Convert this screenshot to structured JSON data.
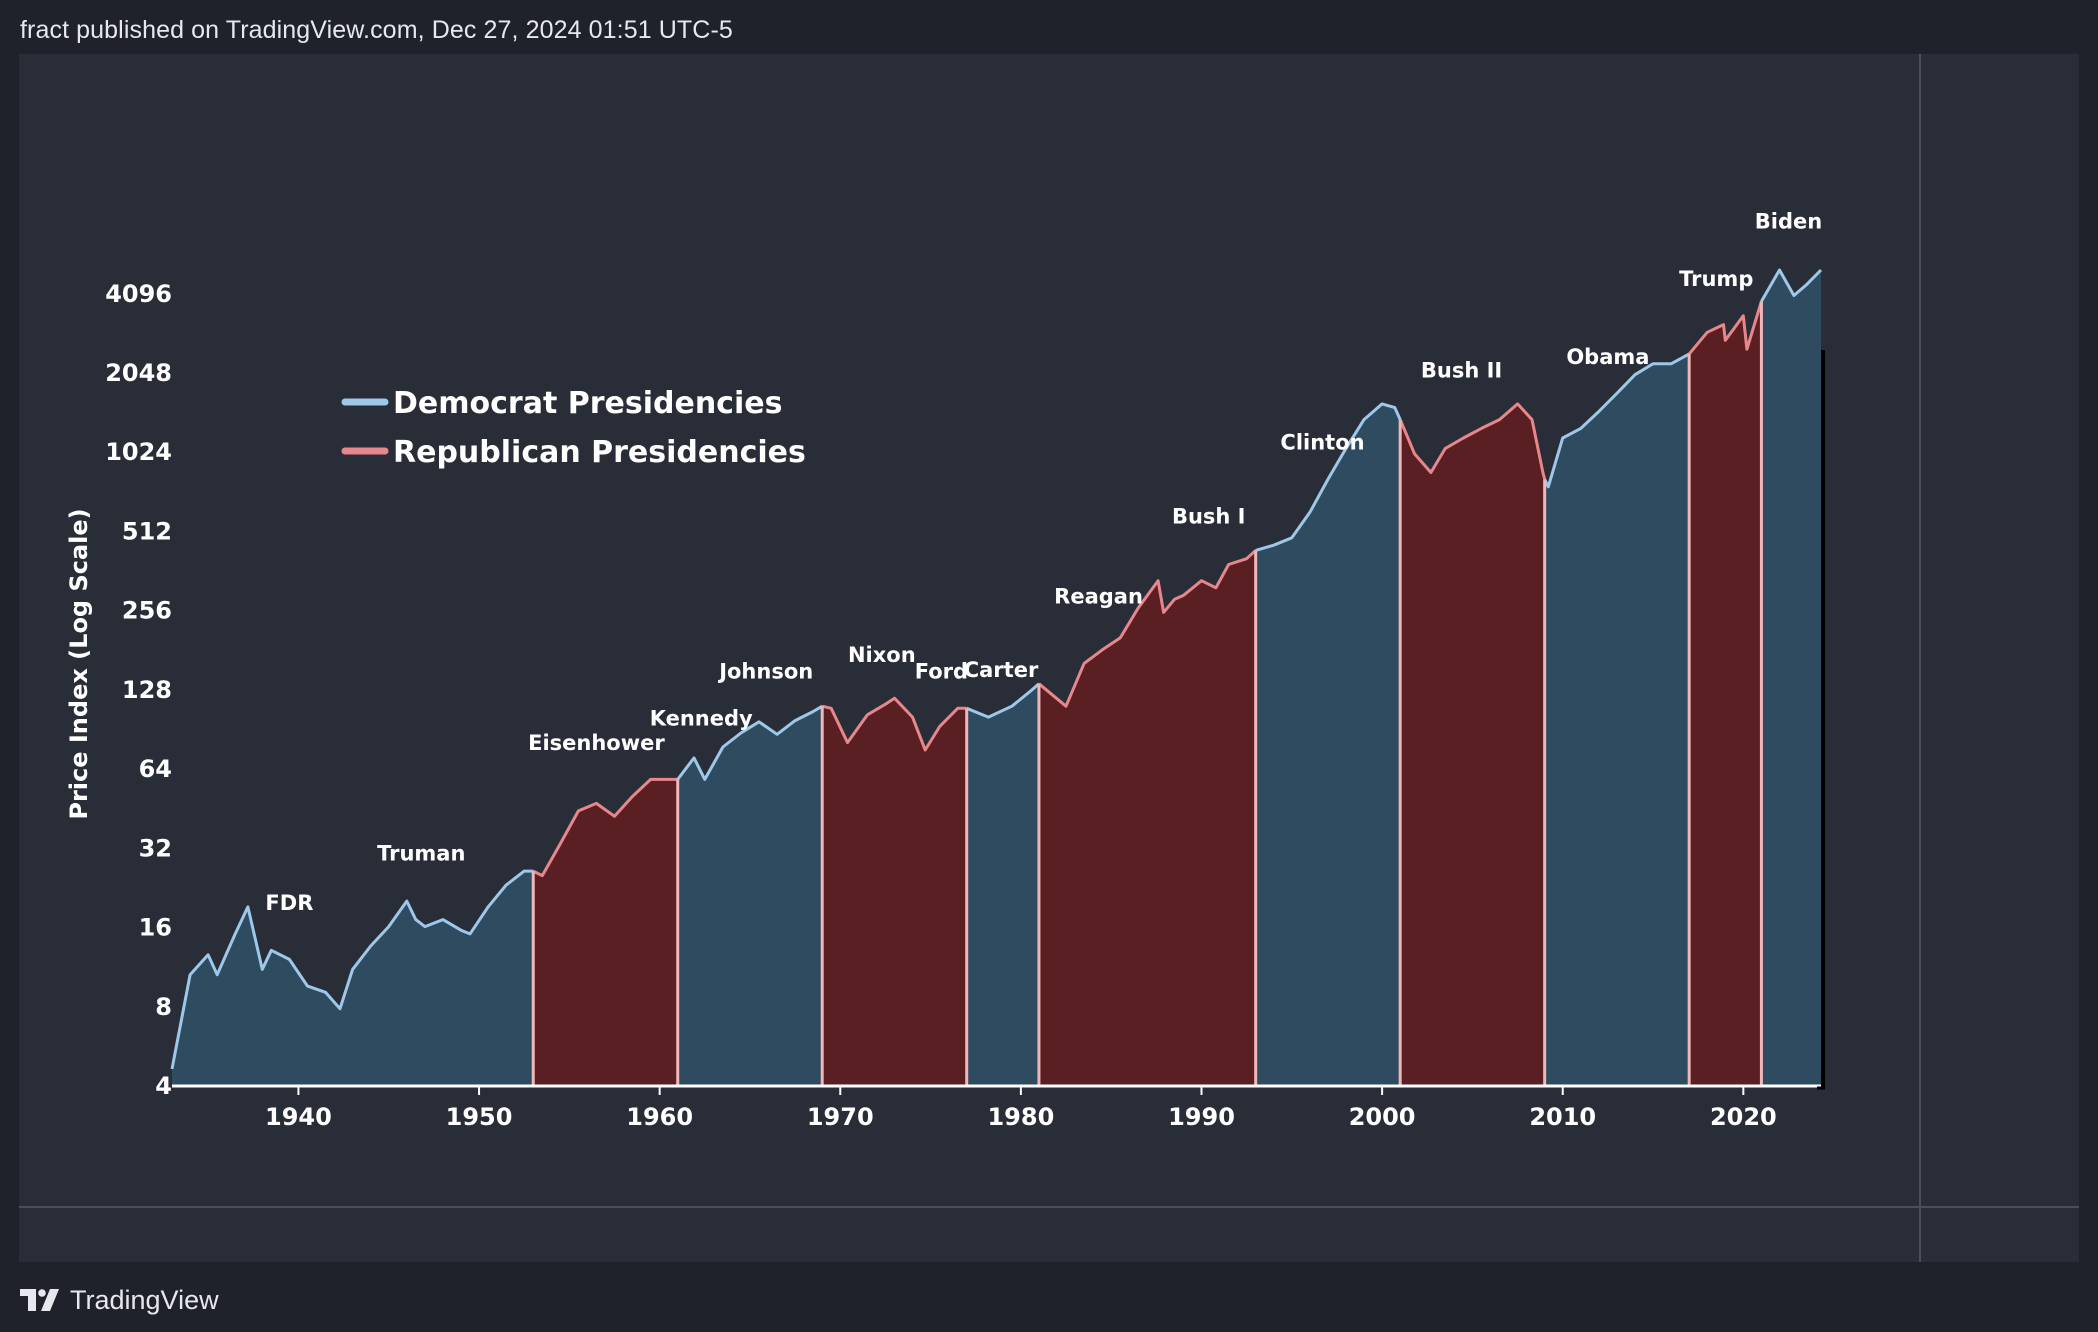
{
  "header": {
    "text": "fract published on TradingView.com, Dec 27, 2024 01:51 UTC-5"
  },
  "footer": {
    "brand": "TradingView",
    "logo_icon": "tradingview-logo-icon"
  },
  "colors": {
    "democrat_fill": "#2f4b60",
    "democrat_line": "#9ec8ea",
    "republican_fill": "#5a1f22",
    "republican_line": "#e8878b",
    "background": "#292d38"
  },
  "chart_data": {
    "type": "area",
    "ylabel": "Price Index (Log Scale)",
    "y_scale": "log2",
    "ylim": [
      4,
      5000
    ],
    "xlim": [
      1933,
      2024.3
    ],
    "y_ticks": [
      4,
      8,
      16,
      32,
      64,
      128,
      256,
      512,
      1024,
      2048,
      4096
    ],
    "x_ticks": [
      1940,
      1950,
      1960,
      1970,
      1980,
      1990,
      2000,
      2010,
      2020
    ],
    "grid": false,
    "legend_position": "top-left",
    "legend": [
      {
        "label": "Democrat Presidencies",
        "party": "D"
      },
      {
        "label": "Republican Presidencies",
        "party": "R"
      }
    ],
    "presidencies": [
      {
        "name": "FDR",
        "party": "D",
        "start": 1933,
        "end": 1945.3
      },
      {
        "name": "Truman",
        "party": "D",
        "start": 1945.3,
        "end": 1953
      },
      {
        "name": "Eisenhower",
        "party": "R",
        "start": 1953,
        "end": 1961
      },
      {
        "name": "Kennedy",
        "party": "D",
        "start": 1961,
        "end": 1963.9
      },
      {
        "name": "Johnson",
        "party": "D",
        "start": 1963.9,
        "end": 1969
      },
      {
        "name": "Nixon",
        "party": "R",
        "start": 1969,
        "end": 1974.6
      },
      {
        "name": "Ford",
        "party": "R",
        "start": 1974.6,
        "end": 1977
      },
      {
        "name": "Carter",
        "party": "D",
        "start": 1977,
        "end": 1981
      },
      {
        "name": "Reagan",
        "party": "R",
        "start": 1981,
        "end": 1989
      },
      {
        "name": "Bush I",
        "party": "R",
        "start": 1989,
        "end": 1993
      },
      {
        "name": "Clinton",
        "party": "D",
        "start": 1993,
        "end": 2001
      },
      {
        "name": "Bush II",
        "party": "R",
        "start": 2001,
        "end": 2009
      },
      {
        "name": "Obama",
        "party": "D",
        "start": 2009,
        "end": 2017
      },
      {
        "name": "Trump",
        "party": "R",
        "start": 2017,
        "end": 2021
      },
      {
        "name": "Biden",
        "party": "D",
        "start": 2021,
        "end": 2024.3
      }
    ],
    "president_labels": [
      {
        "name": "FDR",
        "x": 1939.5,
        "y": 18.5
      },
      {
        "name": "Truman",
        "x": 1946.8,
        "y": 28.5
      },
      {
        "name": "Eisenhower",
        "x": 1956.5,
        "y": 75
      },
      {
        "name": "Kennedy",
        "x": 1962.3,
        "y": 93
      },
      {
        "name": "Johnson",
        "x": 1965.9,
        "y": 140
      },
      {
        "name": "Nixon",
        "x": 1972.3,
        "y": 162
      },
      {
        "name": "Ford",
        "x": 1975.6,
        "y": 140
      },
      {
        "name": "Carter",
        "x": 1978.9,
        "y": 142
      },
      {
        "name": "Reagan",
        "x": 1984.3,
        "y": 270
      },
      {
        "name": "Bush I",
        "x": 1990.4,
        "y": 545
      },
      {
        "name": "Clinton",
        "x": 1996.7,
        "y": 1040
      },
      {
        "name": "Bush II",
        "x": 2004.4,
        "y": 1950
      },
      {
        "name": "Obama",
        "x": 2012.5,
        "y": 2200
      },
      {
        "name": "Trump",
        "x": 2018.5,
        "y": 4350
      },
      {
        "name": "Biden",
        "x": 2022.5,
        "y": 7200
      }
    ],
    "x": [
      1933.0,
      1934.0,
      1935.0,
      1935.5,
      1936.5,
      1937.2,
      1938.0,
      1938.5,
      1939.5,
      1940.5,
      1941.5,
      1942.3,
      1943.0,
      1944.0,
      1945.0,
      1946.0,
      1946.5,
      1947.0,
      1948.0,
      1949.0,
      1949.5,
      1950.5,
      1951.5,
      1952.5,
      1953.0,
      1953.5,
      1954.5,
      1955.5,
      1956.5,
      1957.5,
      1958.5,
      1959.5,
      1960.5,
      1961.0,
      1961.9,
      1962.5,
      1963.5,
      1964.5,
      1965.5,
      1966.5,
      1967.5,
      1968.5,
      1969.0,
      1969.5,
      1970.4,
      1971.5,
      1972.5,
      1973.0,
      1974.0,
      1974.7,
      1975.5,
      1976.5,
      1977.0,
      1978.2,
      1979.5,
      1980.5,
      1981.0,
      1982.5,
      1983.5,
      1984.5,
      1985.5,
      1986.5,
      1987.6,
      1987.9,
      1988.5,
      1989.0,
      1990.0,
      1990.8,
      1991.5,
      1992.5,
      1993.0,
      1994.0,
      1995.0,
      1996.0,
      1997.0,
      1998.0,
      1999.0,
      2000.0,
      2000.7,
      2001.0,
      2001.8,
      2002.7,
      2003.5,
      2004.5,
      2005.5,
      2006.5,
      2007.5,
      2008.3,
      2008.9,
      2009.0,
      2009.2,
      2010.0,
      2011.0,
      2012.0,
      2013.0,
      2014.0,
      2015.0,
      2016.0,
      2017.0,
      2018.0,
      2018.9,
      2019.0,
      2020.0,
      2020.2,
      2021.0,
      2022.0,
      2022.8,
      2023.5,
      2024.3
    ],
    "values": [
      4.6,
      10.5,
      12.5,
      10.5,
      15.0,
      19.0,
      11.0,
      13.0,
      12.0,
      9.5,
      9.0,
      7.8,
      11.0,
      13.5,
      16.0,
      20.0,
      17.0,
      16.0,
      17.0,
      15.5,
      15.0,
      19.0,
      23.0,
      26.0,
      26.0,
      25.0,
      33.0,
      44.0,
      47.0,
      42.0,
      50.0,
      58.0,
      58.0,
      58.0,
      70.0,
      58.0,
      77.0,
      87.0,
      96.0,
      86.0,
      97.0,
      105.0,
      110.0,
      108.0,
      80.0,
      102.0,
      112.0,
      118.0,
      100.0,
      75.0,
      92.0,
      108.0,
      108.0,
      100.0,
      110.0,
      125.0,
      134.0,
      110.0,
      160.0,
      180.0,
      200.0,
      260.0,
      330.0,
      250.0,
      280.0,
      290.0,
      330.0,
      310.0,
      380.0,
      400.0,
      430.0,
      450.0,
      480.0,
      600.0,
      800.0,
      1050.0,
      1350.0,
      1550.0,
      1500.0,
      1350.0,
      1000.0,
      850.0,
      1050.0,
      1150.0,
      1250.0,
      1350.0,
      1550.0,
      1350.0,
      850.0,
      800.0,
      750.0,
      1150.0,
      1250.0,
      1450.0,
      1700.0,
      2000.0,
      2200.0,
      2200.0,
      2400.0,
      2900.0,
      3100.0,
      2700.0,
      3350.0,
      2500.0,
      3800.0,
      5000.0,
      4000.0,
      4400.0,
      5000.0
    ]
  }
}
